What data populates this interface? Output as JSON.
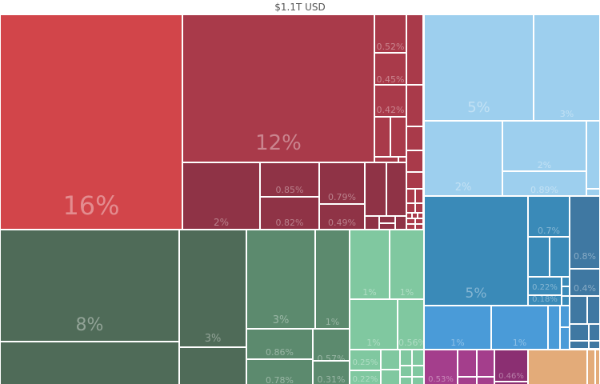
{
  "header": {
    "title": "$1.1T USD"
  },
  "colors": {
    "red": "#d2454a",
    "crimson": "#a93a4a",
    "maroon": "#8f3346",
    "darkgreen": "#4f6b58",
    "green": "#5c8a6e",
    "lightgreen": "#80c8a0",
    "lightblue": "#9dcfee",
    "blue": "#3a8ab8",
    "steelblue": "#3f78a2",
    "brightblue": "#4a9bd8",
    "purple": "#a43e8c",
    "plum": "#8b2f72",
    "orange": "#e3ab79"
  },
  "chart_data": {
    "type": "treemap",
    "title": "$1.1T USD",
    "unit": "share of total",
    "tiles": [
      {
        "share": 16,
        "label": "16%",
        "group": "red"
      },
      {
        "share": 12,
        "label": "12%",
        "group": "red"
      },
      {
        "share": 2,
        "label": "2%",
        "group": "red"
      },
      {
        "share": 0.85,
        "label": "0.85%",
        "group": "red"
      },
      {
        "share": 0.82,
        "label": "0.82%",
        "group": "red"
      },
      {
        "share": 0.79,
        "label": "0.79%",
        "group": "red"
      },
      {
        "share": 0.49,
        "label": "0.49%",
        "group": "red"
      },
      {
        "share": 0.52,
        "label": "0.52%",
        "group": "red"
      },
      {
        "share": 0.45,
        "label": "0.45%",
        "group": "red"
      },
      {
        "share": 0.42,
        "label": "0.42%",
        "group": "red"
      },
      {
        "share": 8,
        "label": "8%",
        "group": "green"
      },
      {
        "share": 3,
        "label": "3%",
        "group": "green"
      },
      {
        "share": 3,
        "label": "3%",
        "group": "green"
      },
      {
        "share": 1,
        "label": "1%",
        "group": "green"
      },
      {
        "share": 0.86,
        "label": "0.86%",
        "group": "green"
      },
      {
        "share": 0.78,
        "label": "0.78%",
        "group": "green"
      },
      {
        "share": 0.57,
        "label": "0.57%",
        "group": "green"
      },
      {
        "share": 0.31,
        "label": "0.31%",
        "group": "green"
      },
      {
        "share": 1,
        "label": "1%",
        "group": "green"
      },
      {
        "share": 1,
        "label": "1%",
        "group": "green"
      },
      {
        "share": 1,
        "label": "1%",
        "group": "green"
      },
      {
        "share": 0.56,
        "label": "0.56%",
        "group": "green"
      },
      {
        "share": 0.25,
        "label": "0.25%",
        "group": "green"
      },
      {
        "share": 0.22,
        "label": "0.22%",
        "group": "green"
      },
      {
        "share": 5,
        "label": "5%",
        "group": "lightblue"
      },
      {
        "share": 3,
        "label": "3%",
        "group": "lightblue"
      },
      {
        "share": 2,
        "label": "2%",
        "group": "lightblue"
      },
      {
        "share": 2,
        "label": "2%",
        "group": "lightblue"
      },
      {
        "share": 0.89,
        "label": "0.89%",
        "group": "lightblue"
      },
      {
        "share": 5,
        "label": "5%",
        "group": "blue"
      },
      {
        "share": 0.7,
        "label": "0.7%",
        "group": "blue"
      },
      {
        "share": 0.22,
        "label": "0.22%",
        "group": "blue"
      },
      {
        "share": 0.18,
        "label": "0.18%",
        "group": "blue"
      },
      {
        "share": 0.8,
        "label": "0.8%",
        "group": "blue"
      },
      {
        "share": 0.4,
        "label": "0.4%",
        "group": "blue"
      },
      {
        "share": 1,
        "label": "1%",
        "group": "blue"
      },
      {
        "share": 1,
        "label": "1%",
        "group": "blue"
      },
      {
        "share": 0.53,
        "label": "0.53%",
        "group": "purple"
      },
      {
        "share": 0.46,
        "label": "0.46%",
        "group": "purple"
      },
      {
        "share": null,
        "label": "",
        "group": "orange"
      }
    ]
  }
}
